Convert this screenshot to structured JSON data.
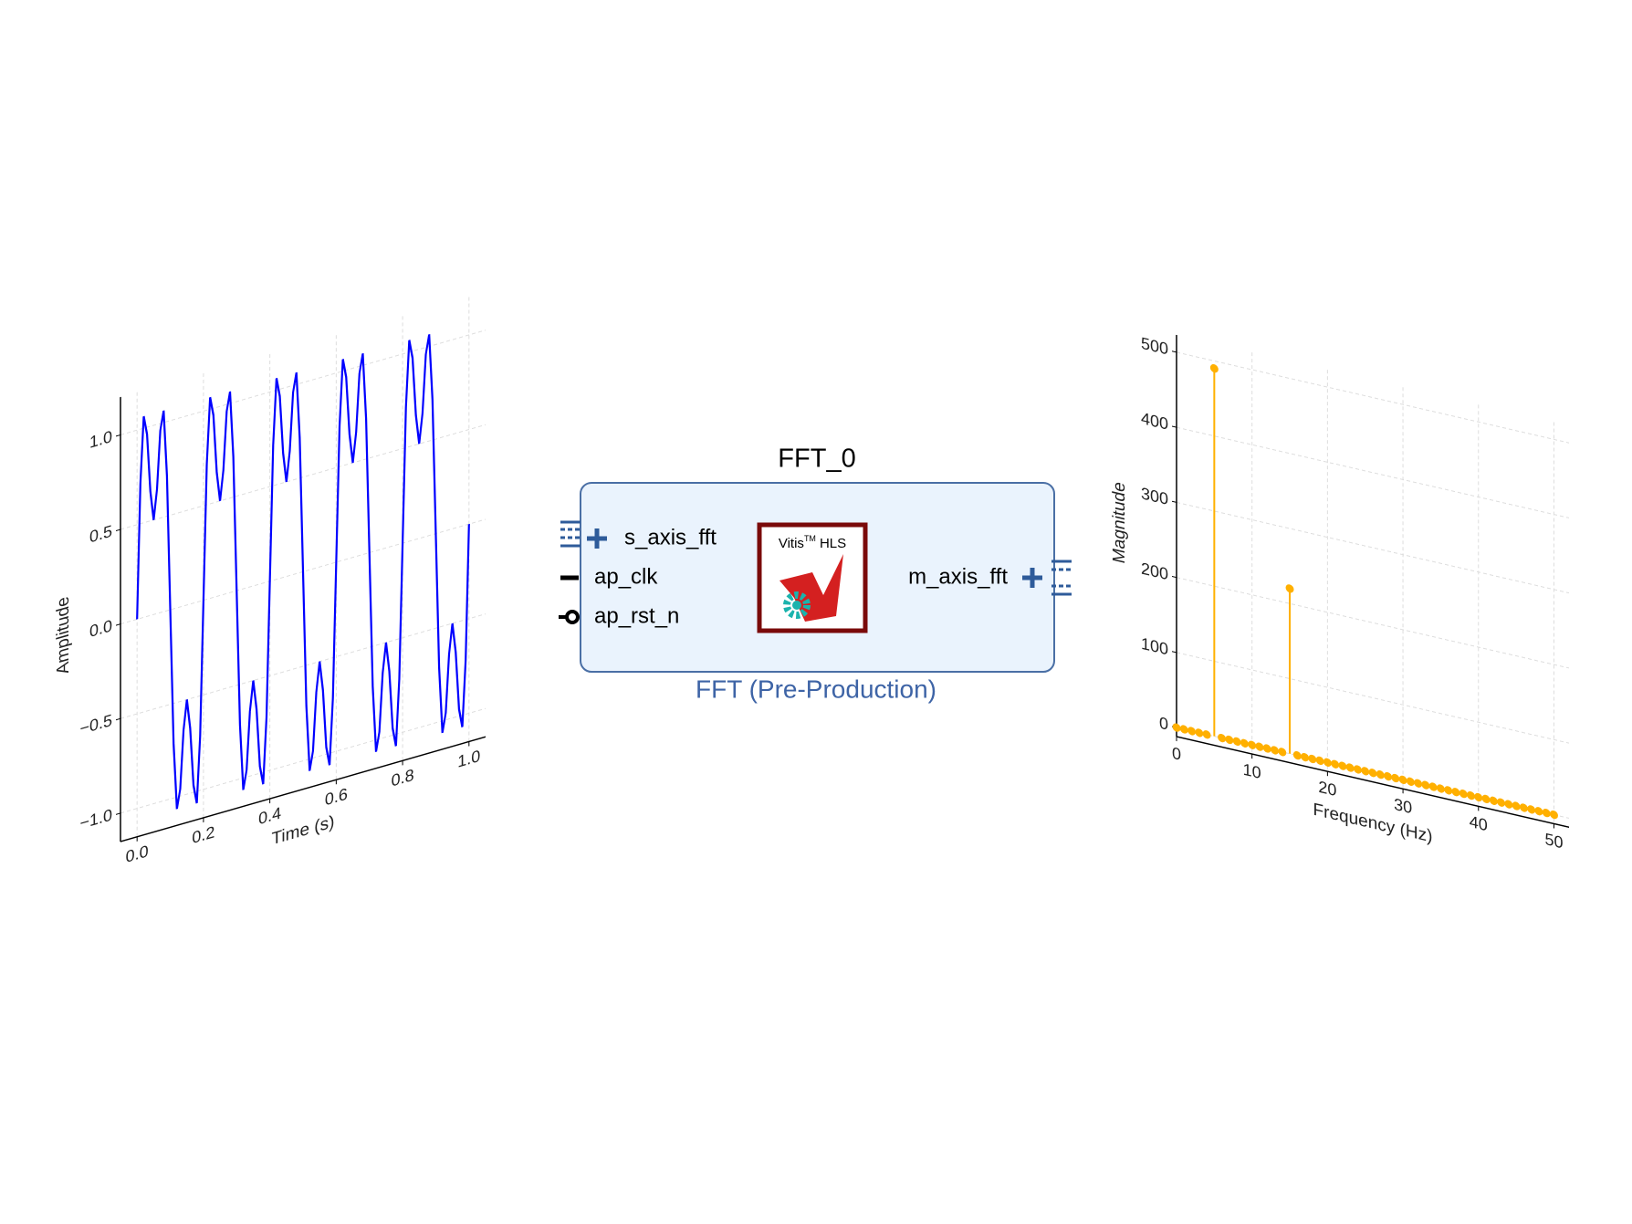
{
  "chart_data": [
    {
      "type": "line",
      "xlabel": "Time (s)",
      "ylabel": "Amplitude",
      "color": "#0000ff",
      "grid": true,
      "xlim": [
        -0.05,
        1.05
      ],
      "ylim": [
        -1.15,
        1.2
      ],
      "xticks": [
        {
          "value": 0,
          "label": "0.0"
        },
        0.2,
        0.4,
        0.6,
        0.8,
        {
          "value": 1,
          "label": "1.0"
        }
      ],
      "yticks": [
        {
          "value": -1,
          "label": "−1.0"
        },
        {
          "value": -0.5,
          "label": "−0.5"
        },
        {
          "value": 0,
          "label": "0.0"
        },
        0.5,
        {
          "value": 1,
          "label": "1.0"
        }
      ],
      "x": [
        0,
        0.01,
        0.02,
        0.03,
        0.04,
        0.05,
        0.06,
        0.07,
        0.08,
        0.09,
        0.1,
        0.11,
        0.12,
        0.13,
        0.14,
        0.15,
        0.16,
        0.17,
        0.18,
        0.19,
        0.2,
        0.21,
        0.22,
        0.23,
        0.24,
        0.25,
        0.26,
        0.27,
        0.28,
        0.29,
        0.3,
        0.31,
        0.32,
        0.33,
        0.34,
        0.35,
        0.36,
        0.37,
        0.38,
        0.39,
        0.4,
        0.41,
        0.42,
        0.43,
        0.44,
        0.45,
        0.46,
        0.47,
        0.48,
        0.49,
        0.5,
        0.51,
        0.52,
        0.53,
        0.54,
        0.55,
        0.56,
        0.57,
        0.58,
        0.59,
        0.6,
        0.61,
        0.62,
        0.63,
        0.64,
        0.65,
        0.66,
        0.67,
        0.68,
        0.69,
        0.7,
        0.71,
        0.72,
        0.73,
        0.74,
        0.75,
        0.76,
        0.77,
        0.78,
        0.79,
        0.8,
        0.81,
        0.82,
        0.83,
        0.84,
        0.85,
        0.86,
        0.87,
        0.88,
        0.89,
        0.9,
        0.91,
        0.92,
        0.93,
        0.94,
        0.95,
        0.96,
        0.97,
        0.98,
        0.99,
        1
      ],
      "values": [
        0,
        0.713,
        1.063,
        0.963,
        0.657,
        0.5,
        0.657,
        0.963,
        1.063,
        0.713,
        0,
        -0.713,
        -1.063,
        -0.963,
        -0.657,
        -0.5,
        -0.657,
        -0.963,
        -1.063,
        -0.713,
        0,
        0.713,
        1.063,
        0.963,
        0.657,
        0.5,
        0.657,
        0.963,
        1.063,
        0.713,
        0,
        -0.713,
        -1.063,
        -0.963,
        -0.657,
        -0.5,
        -0.657,
        -0.963,
        -1.063,
        -0.713,
        0,
        0.713,
        1.063,
        0.963,
        0.657,
        0.5,
        0.657,
        0.963,
        1.063,
        0.713,
        0,
        -0.713,
        -1.063,
        -0.963,
        -0.657,
        -0.5,
        -0.657,
        -0.963,
        -1.063,
        -0.713,
        0,
        0.713,
        1.063,
        0.963,
        0.657,
        0.5,
        0.657,
        0.963,
        1.063,
        0.713,
        0,
        -0.713,
        -1.063,
        -0.963,
        -0.657,
        -0.5,
        -0.657,
        -0.963,
        -1.063,
        -0.713,
        0,
        0.713,
        1.063,
        0.963,
        0.657,
        0.5,
        0.657,
        0.963,
        1.063,
        0.713,
        0,
        -0.713,
        -1.063,
        -0.963,
        -0.657,
        -0.5,
        -0.657,
        -0.963,
        -1.063,
        -0.713,
        0
      ]
    },
    {
      "type": "stem",
      "xlabel": "Frequency (Hz)",
      "ylabel": "Magnitude",
      "color": "#ffb000",
      "grid": true,
      "xlim": [
        0,
        52
      ],
      "ylim": [
        -12,
        523
      ],
      "xticks": [
        0,
        10,
        20,
        30,
        40,
        50
      ],
      "yticks": [
        0,
        100,
        200,
        300,
        400,
        500
      ],
      "x": [
        0,
        1,
        2,
        3,
        4,
        5,
        6,
        7,
        8,
        9,
        10,
        11,
        12,
        13,
        14,
        15,
        16,
        17,
        18,
        19,
        20,
        21,
        22,
        23,
        24,
        25,
        26,
        27,
        28,
        29,
        30,
        31,
        32,
        33,
        34,
        35,
        36,
        37,
        38,
        39,
        40,
        41,
        42,
        43,
        44,
        45,
        46,
        47,
        48,
        49,
        50
      ],
      "values": [
        0,
        0,
        0,
        0,
        0,
        490,
        0,
        0,
        0,
        0,
        0,
        0,
        0,
        0,
        0,
        220,
        0,
        0,
        0,
        0,
        0,
        0,
        0,
        0,
        0,
        0,
        0,
        0,
        0,
        0,
        0,
        0,
        0,
        0,
        0,
        0,
        0,
        0,
        0,
        0,
        0,
        0,
        0,
        0,
        0,
        0,
        0,
        0,
        0,
        0,
        0
      ]
    }
  ],
  "block": {
    "title": "FFT_0",
    "subtitle": "FFT (Pre-Production)",
    "inputs": [
      "s_axis_fft",
      "ap_clk",
      "ap_rst_n"
    ],
    "outputs": [
      "m_axis_fft"
    ],
    "logo": {
      "name": "Vitis",
      "sup": "TM",
      "suffix": "HLS"
    }
  }
}
